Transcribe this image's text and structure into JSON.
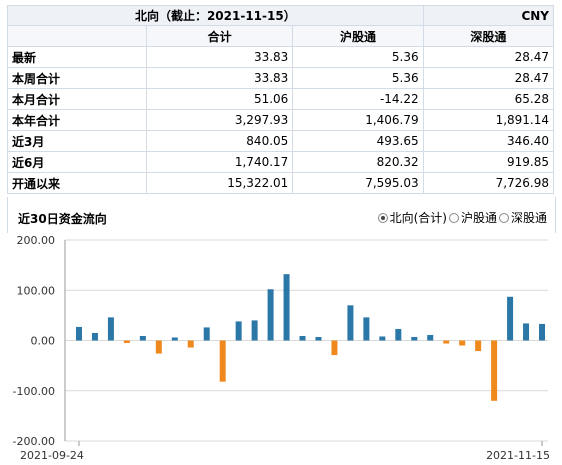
{
  "table": {
    "title": "北向（截止：2021-11-15）",
    "unit": "CNY",
    "columns": [
      "",
      "合计",
      "沪股通",
      "深股通"
    ],
    "rows": [
      {
        "label": "最新",
        "values": [
          "33.83",
          "5.36",
          "28.47"
        ]
      },
      {
        "label": "本周合计",
        "values": [
          "33.83",
          "5.36",
          "28.47"
        ]
      },
      {
        "label": "本月合计",
        "values": [
          "51.06",
          "-14.22",
          "65.28"
        ]
      },
      {
        "label": "本年合计",
        "values": [
          "3,297.93",
          "1,406.79",
          "1,891.14"
        ]
      },
      {
        "label": "近3月",
        "values": [
          "840.05",
          "493.65",
          "346.40"
        ]
      },
      {
        "label": "近6月",
        "values": [
          "1,740.17",
          "820.32",
          "919.85"
        ]
      },
      {
        "label": "开通以来",
        "values": [
          "15,322.01",
          "7,595.03",
          "7,726.98"
        ]
      }
    ]
  },
  "chart_section": {
    "title": "近30日资金流向",
    "options": [
      {
        "label": "北向(合计)",
        "checked": true
      },
      {
        "label": "沪股通",
        "checked": false
      },
      {
        "label": "深股通",
        "checked": false
      }
    ]
  },
  "colors": {
    "positive": "#2a77a8",
    "negative": "#f0891d",
    "grid": "#d9d9d9",
    "axis": "#999999"
  },
  "chart_data": {
    "type": "bar",
    "x_start_label": "2021-09-24",
    "x_end_label": "2021-11-15",
    "yticks": [
      "200.00",
      "100.00",
      "0.00",
      "-100.00",
      "-200.00"
    ],
    "ylim": [
      -200,
      200
    ],
    "values": [
      27,
      15,
      46,
      -5,
      9,
      -26,
      6,
      -14,
      26,
      -82,
      38,
      40,
      102,
      132,
      9,
      7,
      -29,
      70,
      46,
      8,
      23,
      7,
      11,
      -6,
      -10,
      -21,
      -120,
      87,
      34,
      33
    ],
    "grid": true
  }
}
